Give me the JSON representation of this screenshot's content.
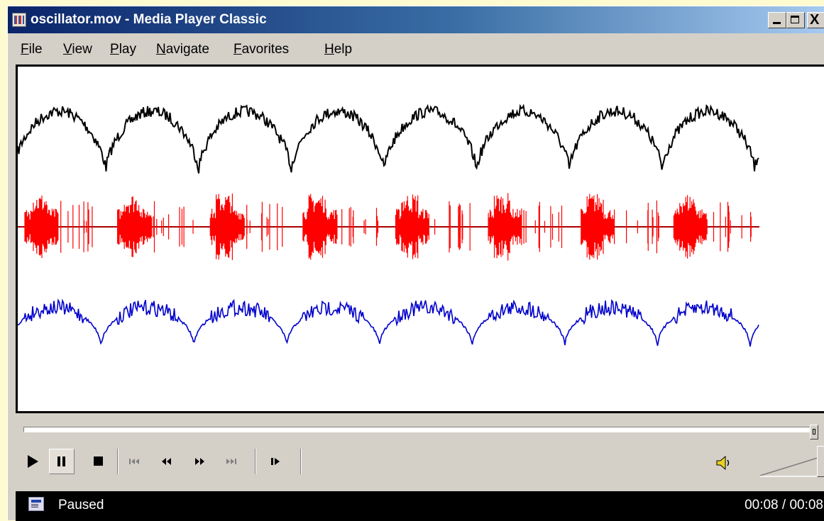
{
  "window": {
    "title": "oscillator.mov - Media Player Classic",
    "minimize_glyph": "",
    "maximize_glyph": "",
    "close_glyph": "X"
  },
  "menu": {
    "items": [
      "File",
      "View",
      "Play",
      "Navigate",
      "Favorites",
      "Help"
    ]
  },
  "video": {
    "traces": [
      {
        "color": "#000000",
        "shape": "arched-dips",
        "cycles": 8
      },
      {
        "color": "#ff0000",
        "shape": "spike-bursts",
        "cycles": 8
      },
      {
        "color": "#0000cc",
        "shape": "rounded-humps",
        "cycles": 8
      }
    ]
  },
  "seek": {
    "position_fraction": 1.0
  },
  "controls": {
    "icons": [
      "play-icon",
      "pause-icon",
      "stop-icon",
      "skip-back-icon",
      "rewind-icon",
      "fast-forward-icon",
      "skip-forward-icon",
      "frame-step-icon"
    ],
    "pressed": "pause-icon",
    "volume_fraction": 1.0
  },
  "status": {
    "state": "Paused",
    "time": "00:08 / 00:08"
  }
}
